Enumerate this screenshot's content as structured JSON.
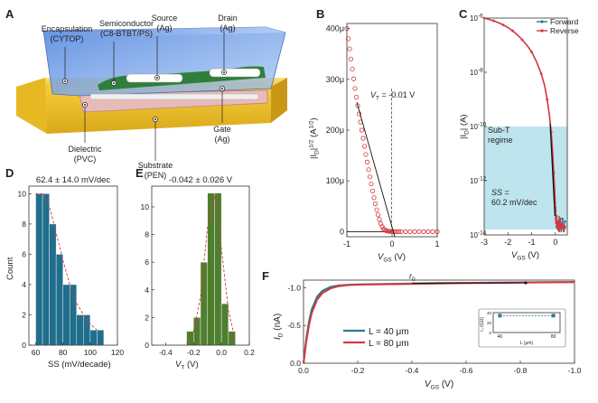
{
  "panels": {
    "A": {
      "letter": "A",
      "labels": {
        "encapsulation": "Encapsulation",
        "encapsulation_material": "(CYTOP)",
        "semiconductor": "Semiconductor",
        "semiconductor_material": "(C8-BTBT/PS)",
        "source": "Source",
        "source_material": "(Ag)",
        "drain": "Drain",
        "drain_material": "(Ag)",
        "gate": "Gate",
        "gate_material": "(Ag)",
        "dielectric": "Dielectric",
        "dielectric_material": "(PVC)",
        "substrate": "Substrate",
        "substrate_material": "(PEN)"
      }
    },
    "B": {
      "letter": "B",
      "annotation_vt": "V",
      "annotation_vt_sub": "T",
      "annotation_vt_value": " = -0.01 V"
    },
    "C": {
      "letter": "C",
      "subt_line1": "Sub-T",
      "subt_line2": "regime",
      "ss_line1": "SS",
      "ss_line1_rest": " =",
      "ss_line2": "60.2 mV/dec"
    },
    "D": {
      "letter": "D",
      "annotation": "62.4 ± 14.0 mV/dec"
    },
    "E": {
      "letter": "E",
      "annotation": "-0.042 ± 0.026 V"
    },
    "F": {
      "letter": "F",
      "r0_label": "r",
      "r0_sub": "0",
      "inset_ylabel": "r₀ (GΩ)",
      "inset_xlabel": "L (μm)"
    }
  },
  "chart_data": [
    {
      "id": "B",
      "type": "scatter",
      "xlabel": "VGS (V)",
      "ylabel": "|ID|1/2 (A1/2)",
      "xlim": [
        -1,
        1
      ],
      "ylim": [
        -10,
        410
      ],
      "xticks": [
        -1,
        0,
        1
      ],
      "xtick_labels": [
        "-1",
        "0",
        "1"
      ],
      "yticks": [
        0,
        100,
        200,
        300,
        400
      ],
      "ytick_labels": [
        "0",
        "100μ",
        "200μ",
        "300μ",
        "400μ"
      ],
      "series": [
        {
          "x": [
            -1.0,
            -0.97,
            -0.94,
            -0.91,
            -0.88,
            -0.85,
            -0.82,
            -0.79,
            -0.76,
            -0.73,
            -0.7,
            -0.67,
            -0.64,
            -0.61,
            -0.58,
            -0.55,
            -0.52,
            -0.49,
            -0.46,
            -0.43,
            -0.4,
            -0.37,
            -0.34,
            -0.31,
            -0.28,
            -0.25,
            -0.22,
            -0.19,
            -0.16,
            -0.13,
            -0.1,
            -0.07,
            -0.04,
            -0.01,
            0.02,
            0.05,
            0.1,
            0.15,
            0.2,
            0.3,
            0.4,
            0.5,
            0.6,
            0.7,
            0.8,
            0.9,
            1.0
          ],
          "y": [
            400,
            380,
            360,
            340,
            320,
            301,
            282,
            265,
            248,
            232,
            216,
            200,
            184,
            168,
            152,
            137,
            122,
            108,
            94,
            80,
            67,
            55,
            43,
            33,
            24,
            16,
            10,
            6,
            3.5,
            2,
            1.2,
            0.8,
            0.5,
            0.3,
            0.2,
            0.1,
            0,
            0,
            0,
            0,
            0,
            0,
            0,
            0,
            0,
            0,
            0
          ]
        }
      ],
      "fit_line": {
        "x": [
          -0.78,
          0.06
        ],
        "y": [
          255,
          -10
        ]
      },
      "vt": -0.01
    },
    {
      "id": "C",
      "type": "line",
      "xlabel": "VGS (V)",
      "ylabel": "|ID| (A)",
      "xlim": [
        -3,
        0.5
      ],
      "ylim_log10": [
        -14,
        -6
      ],
      "scale": "log",
      "xticks": [
        -3,
        -2,
        -1,
        0
      ],
      "xtick_labels": [
        "-3",
        "-2",
        "-1",
        "0"
      ],
      "yticks_log10": [
        -14,
        -12,
        -10,
        -8,
        -6
      ],
      "ytick_labels": [
        "10",
        "10",
        "10",
        "10",
        "10"
      ],
      "ytick_exponents": [
        "-14",
        "-12",
        "-10",
        "-8",
        "-6"
      ],
      "series": [
        {
          "name": "Forward",
          "color": "#2a7c8c",
          "x": [
            -3.0,
            -2.8,
            -2.6,
            -2.4,
            -2.2,
            -2.0,
            -1.8,
            -1.6,
            -1.4,
            -1.2,
            -1.0,
            -0.8,
            -0.6,
            -0.45,
            -0.35,
            -0.25,
            -0.18,
            -0.12,
            -0.07,
            -0.03,
            0.0,
            0.02,
            0.05,
            0.08,
            0.12,
            0.16,
            0.2,
            0.25,
            0.3,
            0.35,
            0.4
          ],
          "y_log10": [
            -6.0,
            -6.05,
            -6.1,
            -6.17,
            -6.25,
            -6.35,
            -6.47,
            -6.62,
            -6.8,
            -7.0,
            -7.25,
            -7.6,
            -8.05,
            -8.5,
            -9.0,
            -9.6,
            -10.2,
            -10.9,
            -11.7,
            -12.4,
            -13.0,
            -13.4,
            -13.7,
            -13.5,
            -13.8,
            -13.3,
            -13.7,
            -13.9,
            -13.4,
            -13.8,
            -13.5
          ]
        },
        {
          "name": "Reverse",
          "color": "#d4383e",
          "x": [
            -3.0,
            -2.8,
            -2.6,
            -2.4,
            -2.2,
            -2.0,
            -1.8,
            -1.6,
            -1.4,
            -1.2,
            -1.0,
            -0.8,
            -0.6,
            -0.45,
            -0.35,
            -0.25,
            -0.18,
            -0.12,
            -0.07,
            -0.03,
            0.0,
            0.02,
            0.05,
            0.08,
            0.12,
            0.16,
            0.2,
            0.25,
            0.3,
            0.35,
            0.4
          ],
          "y_log10": [
            -6.0,
            -6.05,
            -6.1,
            -6.17,
            -6.25,
            -6.35,
            -6.47,
            -6.62,
            -6.8,
            -7.0,
            -7.25,
            -7.6,
            -8.05,
            -8.5,
            -9.0,
            -9.6,
            -10.2,
            -10.9,
            -11.7,
            -12.4,
            -13.1,
            -13.6,
            -13.3,
            -13.8,
            -13.5,
            -13.9,
            -13.4,
            -13.8,
            -13.6,
            -13.9,
            -13.7
          ]
        }
      ],
      "legend": "top-right",
      "subt_region_log10": [
        -13.8,
        -10.0
      ]
    },
    {
      "id": "D",
      "type": "bar",
      "xlabel": "SS (mV/decade)",
      "ylabel": "Count",
      "xlim": [
        55,
        120
      ],
      "ylim": [
        0,
        10.5
      ],
      "xticks": [
        60,
        80,
        100,
        120
      ],
      "xtick_labels": [
        "60",
        "80",
        "100",
        "120"
      ],
      "yticks": [
        0,
        2,
        4,
        6,
        8,
        10
      ],
      "ytick_labels": [
        "0",
        "2",
        "4",
        "6",
        "8",
        "10"
      ],
      "bin_edges": [
        60,
        65,
        70,
        75,
        80,
        85,
        90,
        95,
        100,
        105,
        110
      ],
      "values": [
        10,
        10,
        8,
        6,
        4,
        4,
        2,
        2,
        1,
        1
      ],
      "fit_line": {
        "x": [
          60,
          65,
          70,
          75,
          80,
          85,
          90,
          95,
          100,
          105
        ],
        "y": [
          10,
          10,
          9.2,
          7.4,
          5.6,
          4,
          2.8,
          2,
          1.4,
          1
        ]
      },
      "bar_color": "#1f6e8c"
    },
    {
      "id": "E",
      "type": "bar",
      "xlabel": "VT (V)",
      "ylabel": "",
      "xlim": [
        -0.5,
        0.2
      ],
      "ylim": [
        0,
        11.5
      ],
      "xticks": [
        -0.4,
        -0.2,
        0.0,
        0.2
      ],
      "xtick_labels": [
        "-0.4",
        "-0.2",
        "0.0",
        "0.2"
      ],
      "yticks": [
        0,
        2,
        4,
        6,
        8,
        10
      ],
      "ytick_labels": [
        "0",
        "2",
        "4",
        "6",
        "8",
        "10"
      ],
      "bin_edges": [
        -0.25,
        -0.2,
        -0.15,
        -0.1,
        -0.05,
        0.0,
        0.05,
        0.1
      ],
      "values": [
        1,
        2,
        6,
        11,
        11,
        3,
        1
      ],
      "fit_line": {
        "x": [
          -0.25,
          -0.2,
          -0.15,
          -0.1,
          -0.05,
          0.0,
          0.05,
          0.1
        ],
        "y": [
          0.1,
          1,
          3.5,
          8.5,
          10.8,
          7,
          2.5,
          0.3
        ]
      },
      "bar_color": "#4e7f2c"
    },
    {
      "id": "F",
      "type": "line",
      "xlabel": "VGS (V)",
      "ylabel": "ID (nA)",
      "xlim": [
        0,
        -1.0
      ],
      "ylim": [
        0,
        -1.1
      ],
      "xticks": [
        0,
        -0.2,
        -0.4,
        -0.6,
        -0.8,
        -1.0
      ],
      "xtick_labels": [
        "0.0",
        "-0.2",
        "-0.4",
        "-0.6",
        "-0.8",
        "-1.0"
      ],
      "yticks": [
        0,
        -0.5,
        -1.0
      ],
      "ytick_labels": [
        "0.0",
        "-0.5",
        "-1.0"
      ],
      "series": [
        {
          "name": "L = 40 μm",
          "color": "#2a7c8c",
          "x": [
            0,
            -0.01,
            -0.02,
            -0.03,
            -0.05,
            -0.07,
            -0.1,
            -0.13,
            -0.17,
            -0.22,
            -0.3,
            -0.4,
            -0.5,
            -0.6,
            -0.7,
            -0.8,
            -0.9,
            -1.0
          ],
          "y": [
            0,
            -0.32,
            -0.55,
            -0.71,
            -0.88,
            -0.96,
            -1.01,
            -1.03,
            -1.04,
            -1.045,
            -1.05,
            -1.055,
            -1.06,
            -1.063,
            -1.066,
            -1.07,
            -1.072,
            -1.075
          ]
        },
        {
          "name": "L = 80 μm",
          "color": "#d4383e",
          "x": [
            0,
            -0.01,
            -0.02,
            -0.03,
            -0.05,
            -0.07,
            -0.1,
            -0.13,
            -0.17,
            -0.22,
            -0.3,
            -0.4,
            -0.5,
            -0.6,
            -0.7,
            -0.8,
            -0.9,
            -1.0
          ],
          "y": [
            0,
            -0.28,
            -0.5,
            -0.66,
            -0.84,
            -0.93,
            -0.99,
            -1.02,
            -1.035,
            -1.04,
            -1.045,
            -1.05,
            -1.055,
            -1.06,
            -1.063,
            -1.066,
            -1.07,
            -1.072
          ]
        }
      ],
      "legend": "bottom-center",
      "inset": {
        "xlim": [
          35,
          85
        ],
        "ylim": [
          0,
          40
        ],
        "xticks": [
          40,
          80
        ],
        "xtick_labels": [
          "40",
          "80"
        ],
        "yticks": [
          0,
          20,
          40
        ],
        "ytick_labels": [
          "0",
          "20",
          "40"
        ],
        "x": [
          40,
          80
        ],
        "y": [
          34,
          34
        ]
      }
    }
  ]
}
